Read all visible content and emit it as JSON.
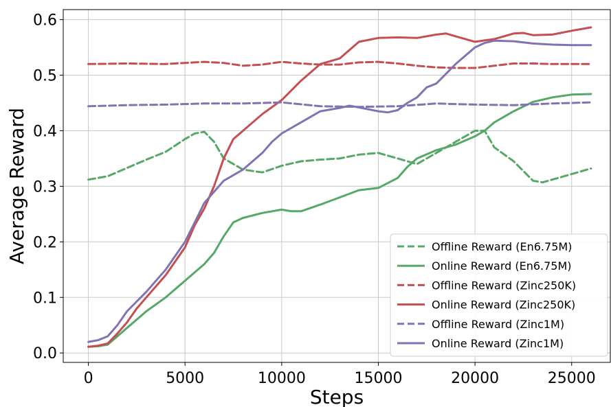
{
  "chart_data": {
    "type": "line",
    "title": "",
    "xlabel": "Steps",
    "ylabel": "Average Reward",
    "xlim": [
      -1300,
      27000
    ],
    "ylim": [
      -0.017,
      0.618
    ],
    "xticks": [
      0,
      5000,
      10000,
      15000,
      20000,
      25000
    ],
    "yticks": [
      0.0,
      0.1,
      0.2,
      0.3,
      0.4,
      0.5,
      0.6
    ],
    "xtick_labels": [
      "0",
      "5000",
      "10000",
      "15000",
      "20000",
      "25000"
    ],
    "ytick_labels": [
      "0.0",
      "0.1",
      "0.2",
      "0.3",
      "0.4",
      "0.5",
      "0.6"
    ],
    "grid": true,
    "legend_position": "lower-right",
    "series": [
      {
        "name": "Offline Reward (En6.75M)",
        "color": "#55a868",
        "dashed": true,
        "x": [
          0,
          1000,
          2000,
          3000,
          4000,
          5000,
          5500,
          6000,
          6500,
          7000,
          8000,
          9000,
          10000,
          11000,
          12000,
          13000,
          14000,
          15000,
          16000,
          17000,
          18000,
          19000,
          20000,
          20500,
          21000,
          22000,
          23000,
          23500,
          24000,
          25000,
          26000
        ],
        "y": [
          0.312,
          0.318,
          0.333,
          0.348,
          0.362,
          0.385,
          0.395,
          0.398,
          0.38,
          0.35,
          0.33,
          0.325,
          0.337,
          0.345,
          0.348,
          0.35,
          0.357,
          0.36,
          0.35,
          0.34,
          0.36,
          0.38,
          0.4,
          0.4,
          0.37,
          0.345,
          0.31,
          0.307,
          0.312,
          0.322,
          0.332
        ]
      },
      {
        "name": "Online Reward (En6.75M)",
        "color": "#55a868",
        "dashed": false,
        "x": [
          0,
          500,
          1000,
          1500,
          2000,
          2500,
          3000,
          4000,
          5000,
          6000,
          6500,
          7000,
          7500,
          8000,
          9000,
          10000,
          10500,
          11000,
          12000,
          13000,
          14000,
          15000,
          16000,
          16500,
          17000,
          18000,
          19000,
          20000,
          20500,
          21000,
          22000,
          23000,
          24000,
          25000,
          26000
        ],
        "y": [
          0.011,
          0.012,
          0.015,
          0.03,
          0.045,
          0.06,
          0.075,
          0.1,
          0.13,
          0.16,
          0.18,
          0.21,
          0.235,
          0.243,
          0.252,
          0.258,
          0.255,
          0.255,
          0.267,
          0.28,
          0.293,
          0.297,
          0.315,
          0.335,
          0.35,
          0.365,
          0.375,
          0.39,
          0.4,
          0.415,
          0.435,
          0.452,
          0.46,
          0.465,
          0.466
        ]
      },
      {
        "name": "Offline Reward (Zinc250K)",
        "color": "#c44e52",
        "dashed": true,
        "x": [
          0,
          2000,
          4000,
          6000,
          7000,
          8000,
          9000,
          10000,
          11000,
          12000,
          13000,
          14000,
          15000,
          16000,
          17000,
          18000,
          19000,
          20000,
          21000,
          22000,
          23000,
          24000,
          25000,
          26000
        ],
        "y": [
          0.52,
          0.521,
          0.52,
          0.524,
          0.522,
          0.517,
          0.519,
          0.524,
          0.521,
          0.519,
          0.519,
          0.523,
          0.524,
          0.521,
          0.517,
          0.514,
          0.513,
          0.513,
          0.517,
          0.521,
          0.521,
          0.52,
          0.52,
          0.52
        ]
      },
      {
        "name": "Online Reward (Zinc250K)",
        "color": "#c44e52",
        "dashed": false,
        "x": [
          0,
          500,
          1000,
          1500,
          2000,
          2500,
          3000,
          4000,
          5000,
          5500,
          6000,
          6500,
          7000,
          7500,
          8000,
          9000,
          10000,
          11000,
          11500,
          12000,
          13000,
          14000,
          15000,
          16000,
          17000,
          18000,
          18500,
          19000,
          20000,
          21000,
          22000,
          22500,
          23000,
          24000,
          25000,
          26000
        ],
        "y": [
          0.011,
          0.013,
          0.017,
          0.035,
          0.055,
          0.08,
          0.1,
          0.14,
          0.19,
          0.23,
          0.26,
          0.3,
          0.35,
          0.385,
          0.4,
          0.43,
          0.455,
          0.49,
          0.505,
          0.52,
          0.53,
          0.56,
          0.567,
          0.568,
          0.567,
          0.573,
          0.575,
          0.57,
          0.56,
          0.565,
          0.575,
          0.576,
          0.572,
          0.573,
          0.58,
          0.586
        ]
      },
      {
        "name": "Offline Reward (Zinc1M)",
        "color": "#8172b2",
        "dashed": true,
        "x": [
          0,
          2000,
          4000,
          6000,
          8000,
          10000,
          12000,
          14000,
          16000,
          18000,
          20000,
          22000,
          24000,
          26000
        ],
        "y": [
          0.444,
          0.446,
          0.447,
          0.449,
          0.449,
          0.451,
          0.444,
          0.443,
          0.444,
          0.449,
          0.447,
          0.446,
          0.449,
          0.451
        ]
      },
      {
        "name": "Online Reward (Zinc1M)",
        "color": "#8172b2",
        "dashed": false,
        "x": [
          0,
          500,
          1000,
          1500,
          2000,
          3000,
          4000,
          5000,
          5500,
          6000,
          6500,
          7000,
          8000,
          9000,
          9500,
          10000,
          11000,
          12000,
          13000,
          13500,
          14000,
          15000,
          15500,
          16000,
          16500,
          17000,
          17500,
          18000,
          19000,
          20000,
          20500,
          21000,
          22000,
          23000,
          24000,
          25000,
          26000
        ],
        "y": [
          0.02,
          0.023,
          0.03,
          0.05,
          0.075,
          0.11,
          0.15,
          0.2,
          0.235,
          0.27,
          0.29,
          0.31,
          0.33,
          0.36,
          0.38,
          0.395,
          0.415,
          0.435,
          0.441,
          0.445,
          0.442,
          0.435,
          0.433,
          0.437,
          0.45,
          0.46,
          0.478,
          0.485,
          0.52,
          0.55,
          0.558,
          0.562,
          0.561,
          0.557,
          0.555,
          0.554,
          0.554
        ]
      }
    ]
  }
}
